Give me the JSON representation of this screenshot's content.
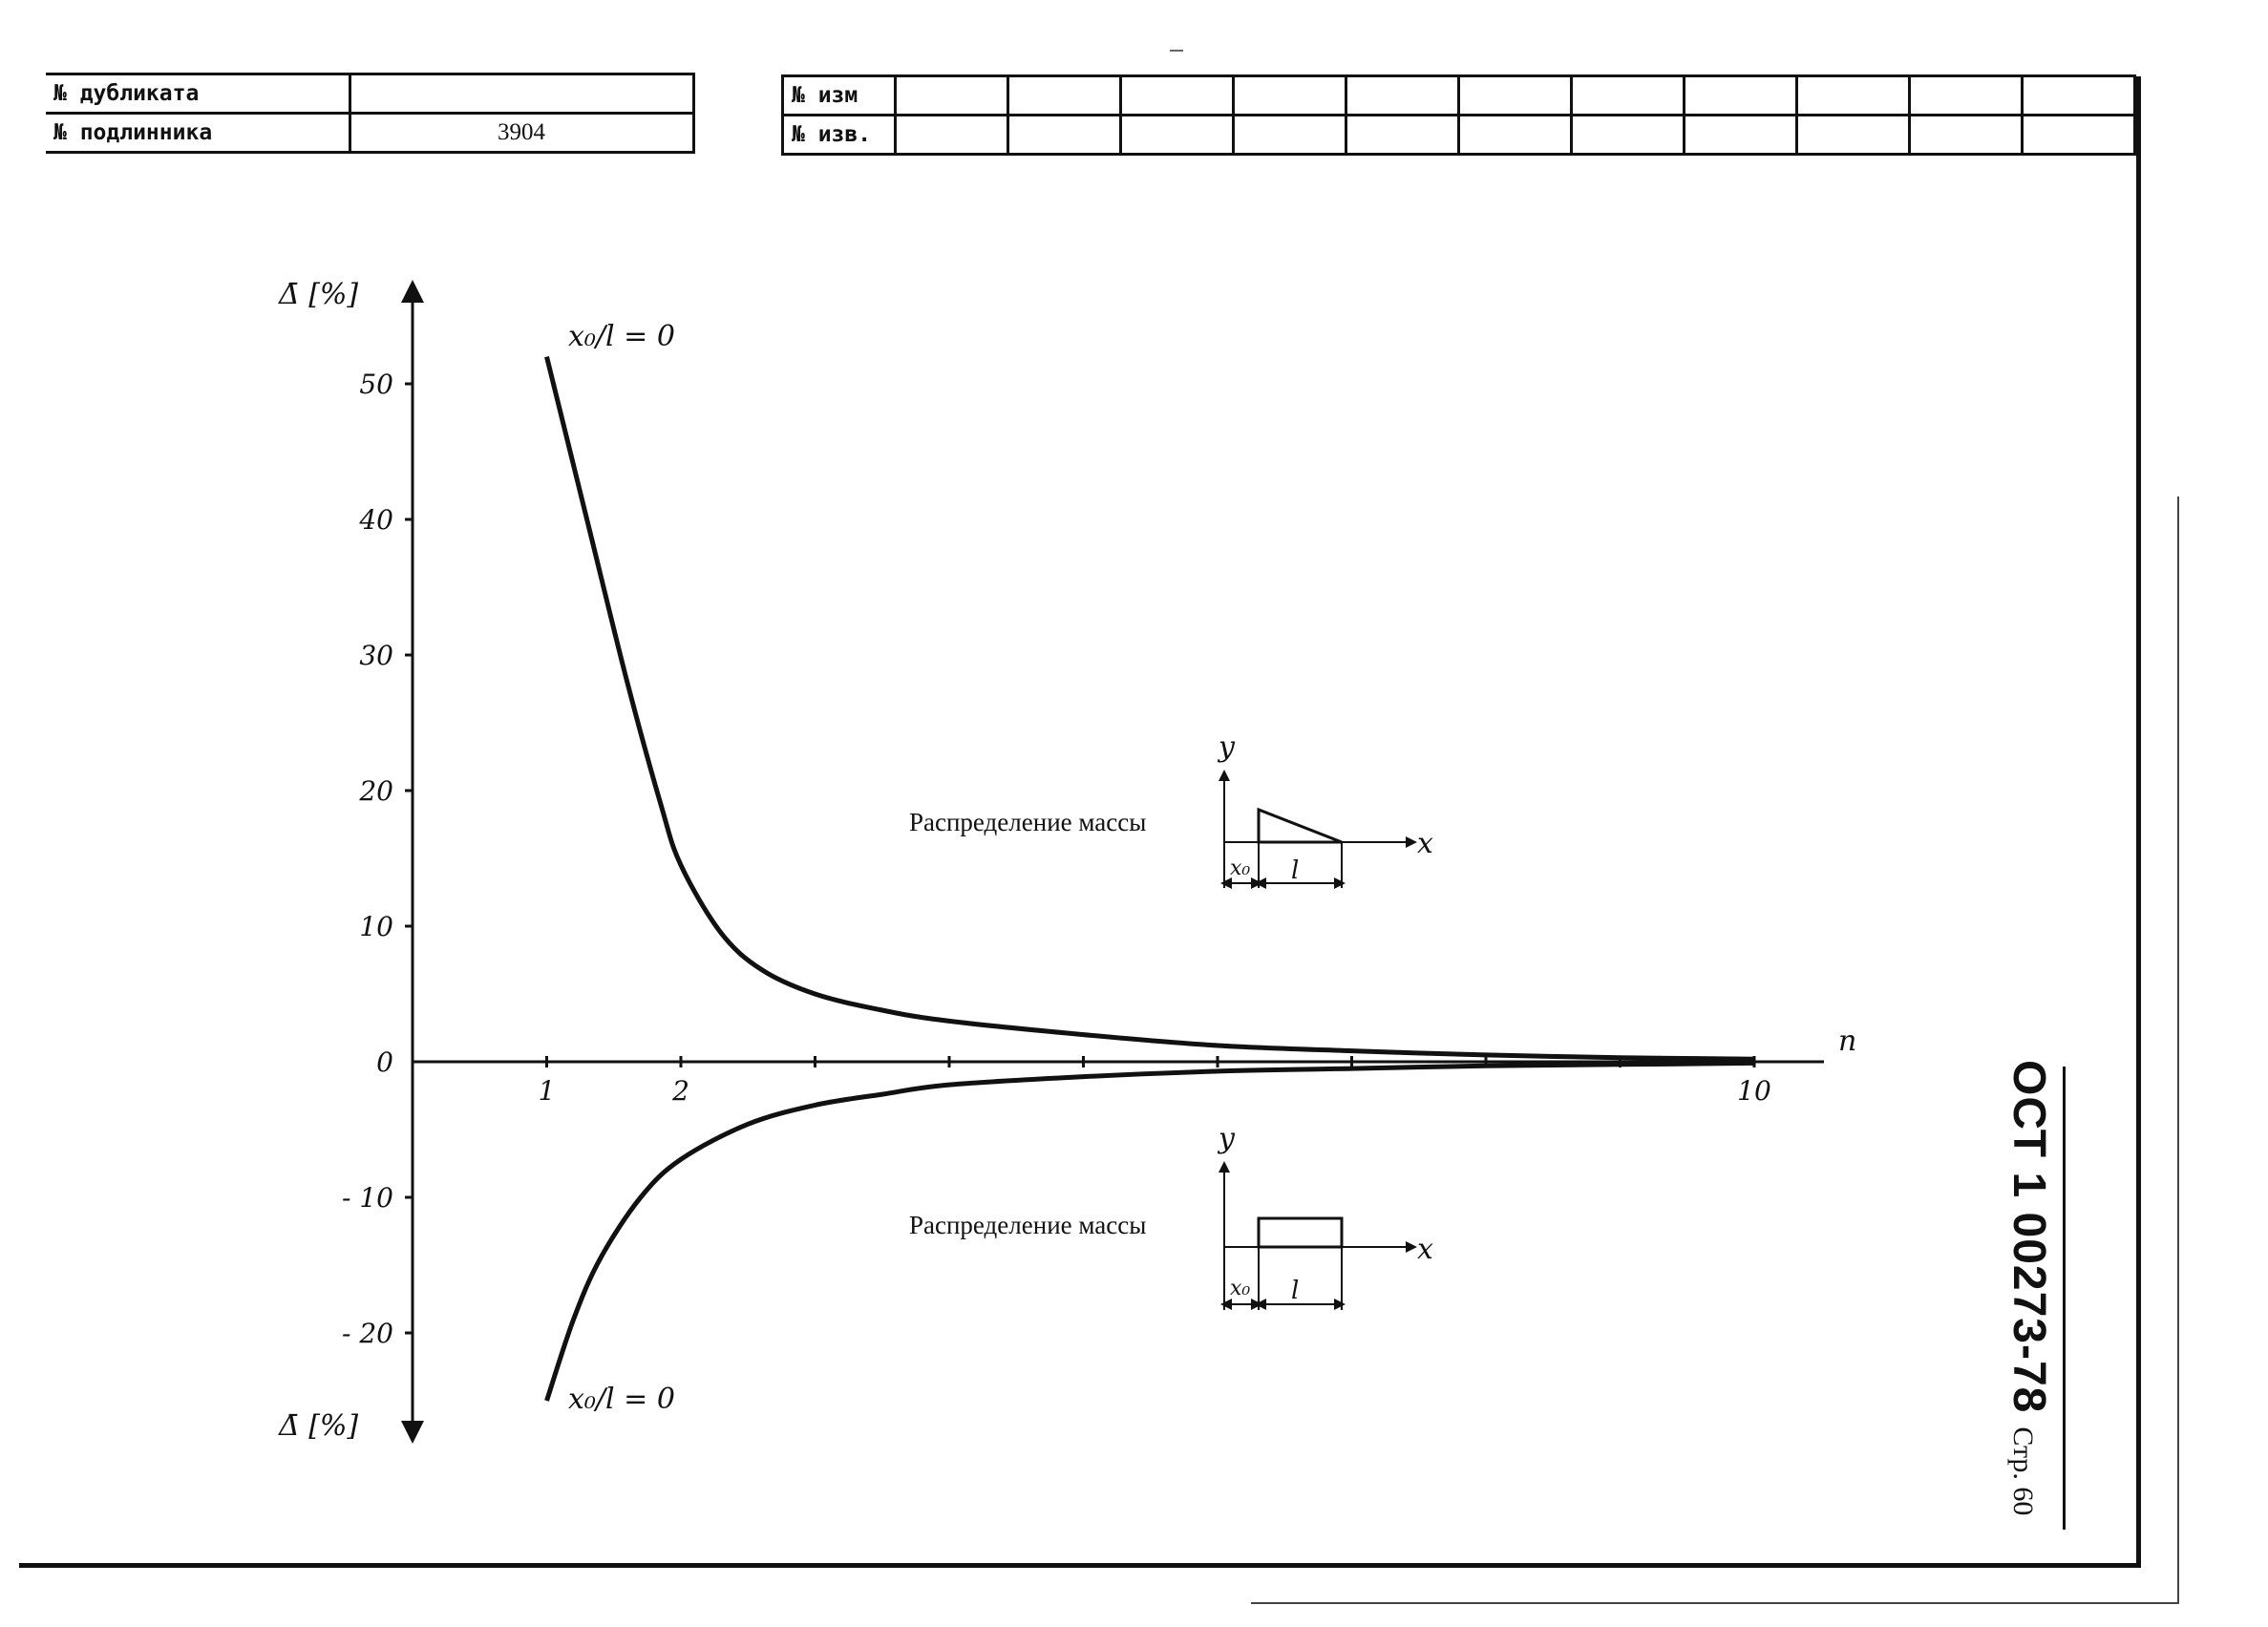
{
  "header": {
    "duplicate_label": "№ дубликата",
    "duplicate_value": "",
    "original_label": "№ подлинника",
    "original_value": "3904",
    "change_label": "№ изм",
    "notice_label": "№ изв."
  },
  "chart_data": {
    "type": "line",
    "y_axis_label_top": "Δ̄ [%]",
    "y_axis_label_bottom": "Δ̄ [%]",
    "x_axis_label": "n",
    "y_ticks": [
      {
        "value": 50,
        "label": "50"
      },
      {
        "value": 40,
        "label": "40"
      },
      {
        "value": 30,
        "label": "30"
      },
      {
        "value": 20,
        "label": "20"
      },
      {
        "value": 10,
        "label": "10"
      },
      {
        "value": 0,
        "label": "0"
      },
      {
        "value": -10,
        "label": "- 10"
      },
      {
        "value": -20,
        "label": "- 20"
      }
    ],
    "x_ticks": [
      1,
      2,
      3,
      4,
      5,
      6,
      7,
      8,
      9,
      10
    ],
    "x_tick_labels": [
      {
        "value": 1,
        "label": "1"
      },
      {
        "value": 2,
        "label": "2"
      },
      {
        "value": 10,
        "label": "10"
      }
    ],
    "xlim": [
      0,
      10.5
    ],
    "ylim": [
      -28,
      56
    ],
    "series": [
      {
        "annotation": "x₀/l = 0",
        "mass_distribution": "triangular",
        "points": [
          [
            1,
            52
          ],
          [
            1.3,
            40
          ],
          [
            1.6,
            28
          ],
          [
            1.85,
            19
          ],
          [
            2,
            14.5
          ],
          [
            2.3,
            9.5
          ],
          [
            2.6,
            6.8
          ],
          [
            3,
            5
          ],
          [
            3.5,
            3.8
          ],
          [
            4,
            3
          ],
          [
            5,
            2
          ],
          [
            6,
            1.2
          ],
          [
            7,
            0.8
          ],
          [
            8,
            0.5
          ],
          [
            9,
            0.3
          ],
          [
            10,
            0.2
          ]
        ]
      },
      {
        "annotation": "x₀/l = 0",
        "mass_distribution": "rectangular",
        "points": [
          [
            1,
            -25
          ],
          [
            1.2,
            -19
          ],
          [
            1.4,
            -14.5
          ],
          [
            1.7,
            -10
          ],
          [
            2,
            -7.2
          ],
          [
            2.5,
            -4.6
          ],
          [
            3,
            -3.2
          ],
          [
            3.5,
            -2.4
          ],
          [
            4,
            -1.7
          ],
          [
            5,
            -1.1
          ],
          [
            6,
            -0.7
          ],
          [
            7,
            -0.5
          ],
          [
            8,
            -0.3
          ],
          [
            9,
            -0.2
          ],
          [
            10,
            -0.1
          ]
        ]
      }
    ],
    "insets": [
      {
        "caption": "Распределение массы",
        "y_label": "y",
        "x_label": "x",
        "x0_label": "x₀",
        "l_label": "l",
        "shape": "triangle"
      },
      {
        "caption": "Распределение массы",
        "y_label": "y",
        "x_label": "x",
        "x0_label": "x₀",
        "l_label": "l",
        "shape": "rectangle"
      }
    ]
  },
  "footer": {
    "doc_code": "ОСТ 1 00273-78",
    "page_label": "Стр. 60"
  }
}
